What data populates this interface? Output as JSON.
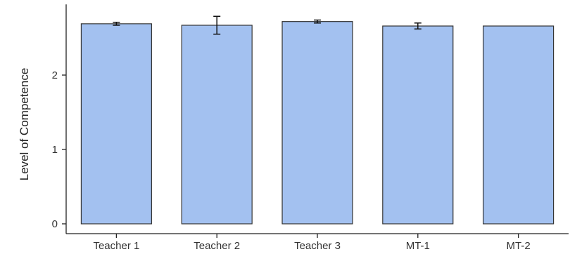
{
  "chart_data": {
    "type": "bar",
    "categories": [
      "Teacher 1",
      "Teacher 2",
      "Teacher 3",
      "MT-1",
      "MT-2"
    ],
    "values": [
      2.69,
      2.67,
      2.72,
      2.66,
      2.66
    ],
    "error": [
      0.02,
      0.12,
      0.02,
      0.04,
      0.0
    ],
    "title": "",
    "xlabel": "",
    "ylabel": "Level of Competence",
    "ylim": [
      0,
      2.95
    ],
    "yticks": [
      0,
      1,
      2
    ],
    "ytick_labels": [
      "0",
      "1",
      "2"
    ],
    "grid": false,
    "bar_color": "#a3c1f0",
    "bar_edge_color": "#333333"
  }
}
